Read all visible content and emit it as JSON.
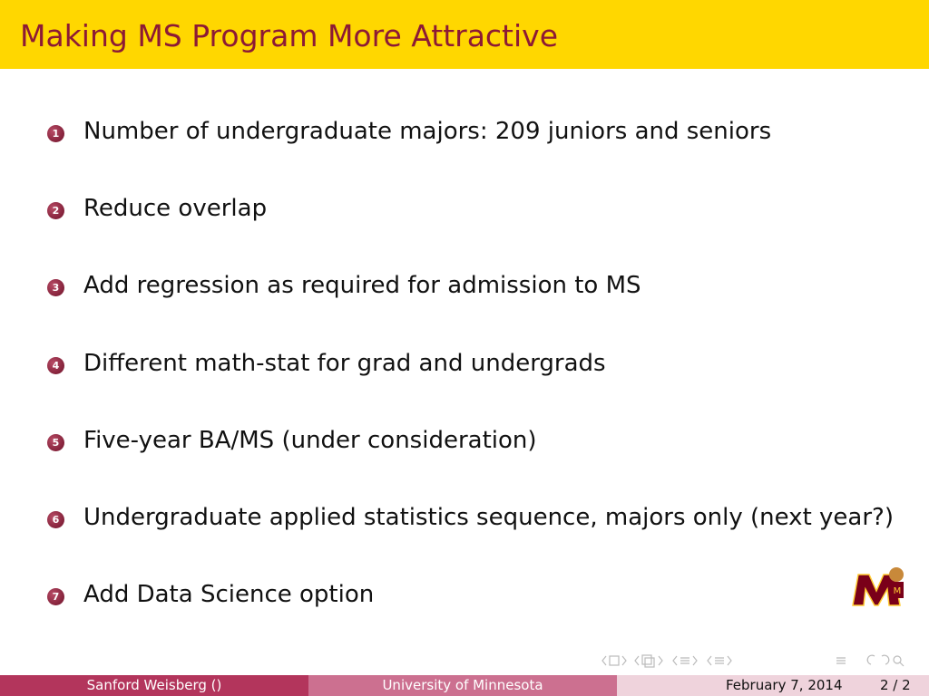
{
  "header": {
    "title": "Making MS Program More Attractive"
  },
  "items": [
    {
      "number": 1,
      "text": "Number of undergraduate majors: 209 juniors and seniors"
    },
    {
      "number": 2,
      "text": "Reduce overlap"
    },
    {
      "number": 3,
      "text": "Add regression as required for admission to MS"
    },
    {
      "number": 4,
      "text": "Different math-stat for grad and undergrads"
    },
    {
      "number": 5,
      "text": "Five-year BA/MS (under consideration)"
    },
    {
      "number": 6,
      "text": "Undergraduate applied statistics sequence, majors only (next year?)"
    },
    {
      "number": 7,
      "text": "Add Data Science option"
    }
  ],
  "footer": {
    "author": "Sanford Weisberg ()",
    "institution": "University of Minnesota",
    "date": "February 7, 2014",
    "page": "2 / 2"
  }
}
